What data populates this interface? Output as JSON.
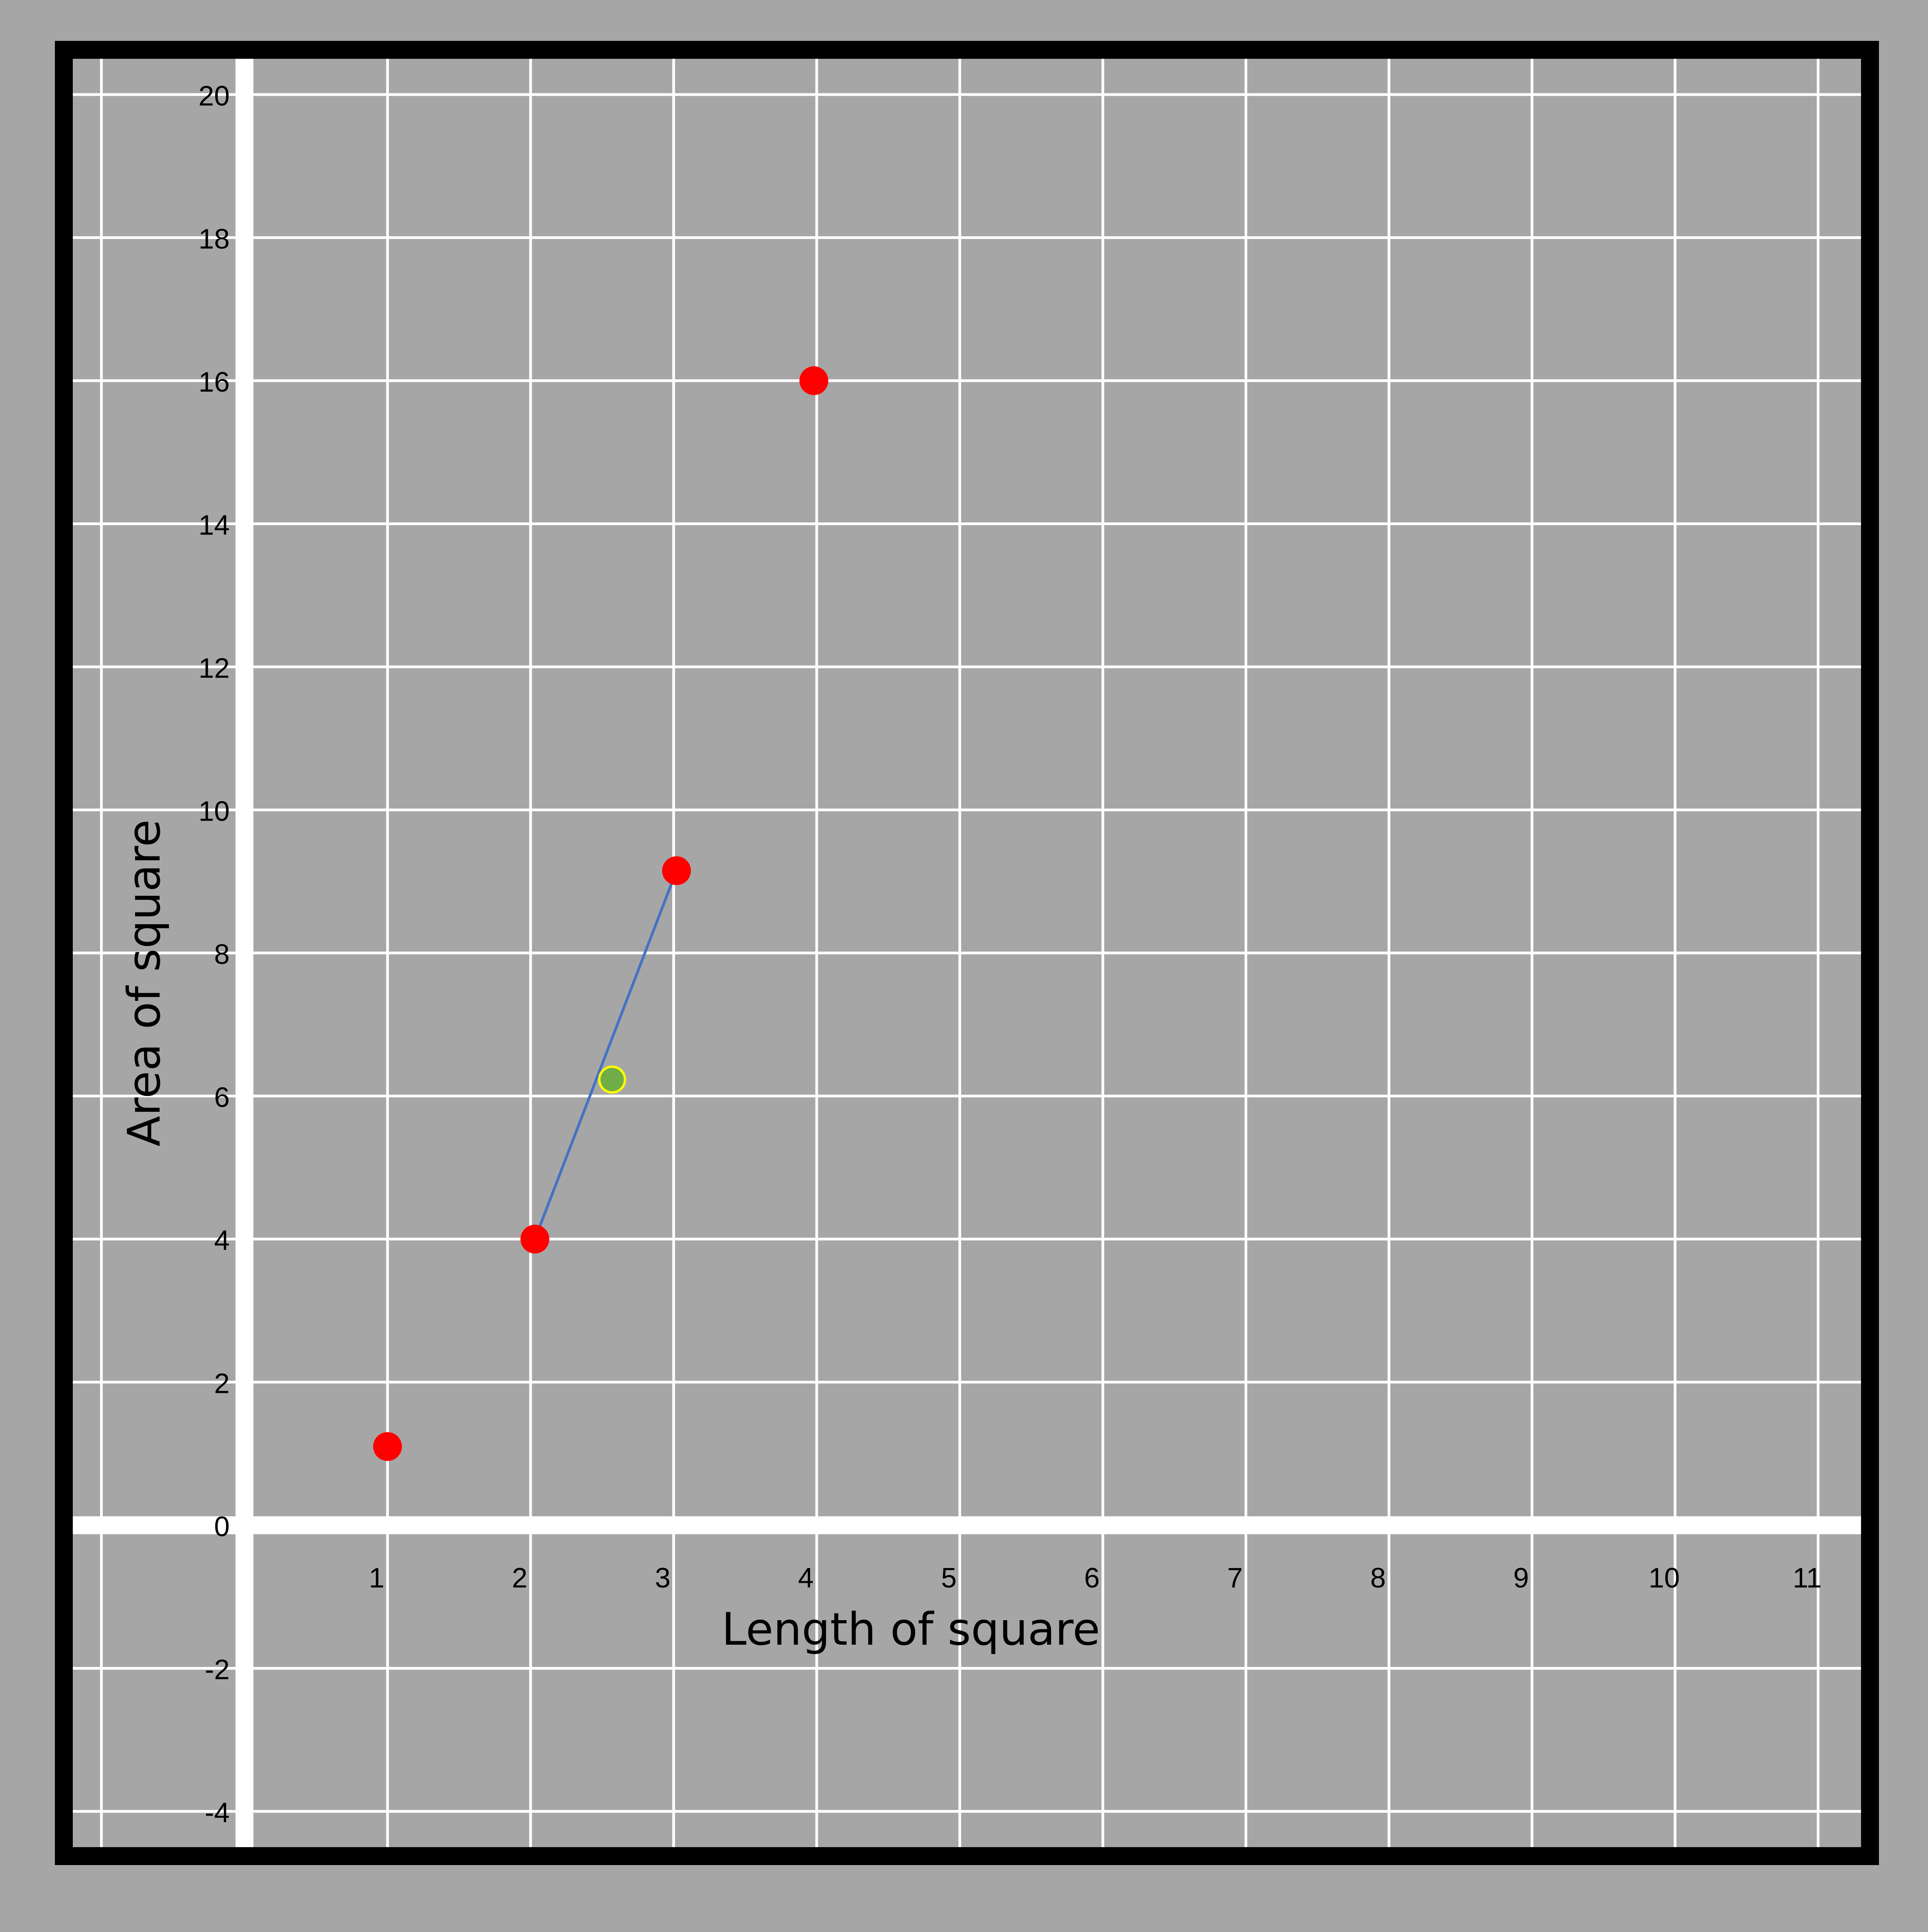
{
  "chart_data": {
    "type": "scatter",
    "title": "",
    "xlabel": "Length of square",
    "ylabel": "Area of square",
    "xlim": [
      -1.2,
      11.3
    ],
    "ylim": [
      -4.5,
      20.5
    ],
    "x_ticks": [
      1,
      2,
      3,
      4,
      5,
      6,
      7,
      8,
      9,
      10,
      11
    ],
    "x_tick_labels": [
      "1",
      "2",
      "3",
      "4",
      "5",
      "6",
      "7",
      "8",
      "9",
      "10",
      "11"
    ],
    "y_ticks": [
      -4,
      -2,
      0,
      2,
      4,
      6,
      8,
      10,
      12,
      14,
      16,
      18,
      20
    ],
    "y_tick_labels": [
      "-4",
      "-2",
      "0",
      "2",
      "4",
      "6",
      "8",
      "10",
      "12",
      "14",
      "16",
      "18",
      "20"
    ],
    "grid": true,
    "series": [
      {
        "type": "scatter",
        "color": "#ff0000",
        "points": [
          {
            "x": 1,
            "y": 1.1
          },
          {
            "x": 2.03,
            "y": 4
          },
          {
            "x": 3.02,
            "y": 9.15
          },
          {
            "x": 3.98,
            "y": 16
          }
        ]
      },
      {
        "type": "line",
        "color": "#4472c4",
        "points": [
          {
            "x": 2.03,
            "y": 4
          },
          {
            "x": 3.02,
            "y": 9.15
          }
        ]
      },
      {
        "type": "scatter",
        "color": "#70ad47",
        "stroke": "#ffff00",
        "points": [
          {
            "x": 2.57,
            "y": 6.23
          }
        ]
      }
    ],
    "colors": {
      "background": "#a6a6a6",
      "frame": "#000000",
      "grid": "#ffffff",
      "axis": "#ffffff"
    }
  }
}
